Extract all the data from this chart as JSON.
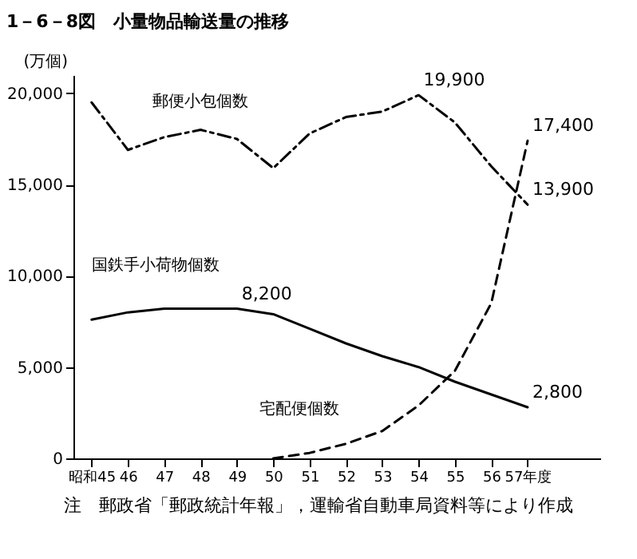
{
  "chart_data": {
    "type": "line",
    "title": "1－6－8図　小量物品輸送量の推移",
    "ylabel": "(万個)",
    "x": [
      45,
      46,
      47,
      48,
      49,
      50,
      51,
      52,
      53,
      54,
      55,
      56,
      57
    ],
    "xlim": [
      44.5,
      59
    ],
    "xticks": [
      {
        "value": 45,
        "label": "昭和45"
      },
      46,
      47,
      48,
      49,
      50,
      51,
      52,
      53,
      54,
      55,
      56,
      {
        "value": 57,
        "label": "57年度"
      }
    ],
    "ylim": [
      0,
      21000
    ],
    "yticks": [
      0,
      {
        "value": 5000,
        "label": "5,000"
      },
      {
        "value": 10000,
        "label": "10,000"
      },
      {
        "value": 15000,
        "label": "15,000"
      },
      {
        "value": 20000,
        "label": "20,000"
      }
    ],
    "series": [
      {
        "name": "郵便小包個数",
        "color": "#000000",
        "line_style": "dashdot",
        "values": [
          19500,
          16900,
          17600,
          18000,
          17500,
          15900,
          17800,
          18700,
          19000,
          19900,
          18400,
          16000,
          13900
        ],
        "value_labels": [
          null,
          null,
          null,
          null,
          null,
          null,
          null,
          null,
          null,
          "19,900",
          null,
          null,
          "13,900"
        ]
      },
      {
        "name": "国鉄手小荷物個数",
        "color": "#000000",
        "line_style": "solid",
        "values": [
          7600,
          8000,
          8200,
          8200,
          8200,
          7900,
          7100,
          6300,
          5600,
          5000,
          4200,
          3500,
          2800
        ],
        "value_labels": [
          null,
          null,
          null,
          null,
          "8,200",
          null,
          null,
          null,
          null,
          null,
          null,
          null,
          "2,800"
        ]
      },
      {
        "name": "宅配便個数",
        "color": "#000000",
        "line_style": "dashed",
        "x": [
          50,
          51,
          52,
          53,
          54,
          55,
          56,
          57
        ],
        "values": [
          0,
          300,
          800,
          1500,
          2900,
          4800,
          8500,
          17400
        ],
        "value_labels": [
          null,
          null,
          null,
          null,
          null,
          null,
          null,
          "17,400"
        ]
      }
    ],
    "marker": "none",
    "grid": false,
    "annotations": [
      "注　郵政省「郵政統計年報」，運輸省自動車局資料等により作成"
    ]
  }
}
